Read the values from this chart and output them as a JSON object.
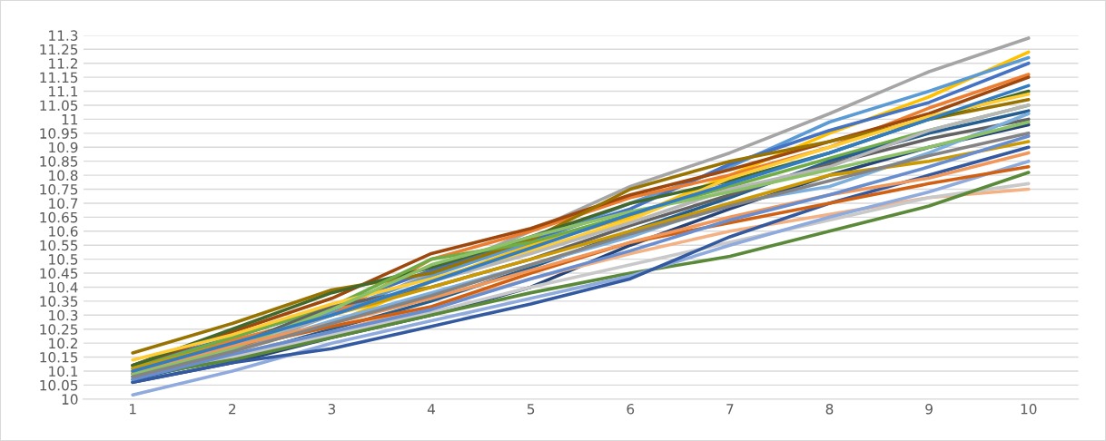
{
  "chart_data": {
    "type": "line",
    "categories": [
      "1",
      "2",
      "3",
      "4",
      "5",
      "6",
      "7",
      "8",
      "9",
      "10"
    ],
    "ylim": [
      10,
      11.3
    ],
    "yticks": [
      10,
      10.05,
      10.1,
      10.15,
      10.2,
      10.25,
      10.3,
      10.35,
      10.4,
      10.45,
      10.5,
      10.55,
      10.6,
      10.65,
      10.7,
      10.75,
      10.8,
      10.85,
      10.9,
      10.95,
      11,
      11.05,
      11.1,
      11.15,
      11.2,
      11.25,
      11.3
    ],
    "grid": "y",
    "marker": "none",
    "line_style": "solid",
    "series": [
      {
        "color": "#a5a5a5",
        "values": [
          10.08,
          10.17,
          10.3,
          10.45,
          10.6,
          10.76,
          10.88,
          11.02,
          11.17,
          11.29
        ]
      },
      {
        "color": "#ffc000",
        "values": [
          10.1,
          10.17,
          10.27,
          10.42,
          10.55,
          10.65,
          10.8,
          10.95,
          11.08,
          11.24
        ]
      },
      {
        "color": "#5b9bd5",
        "values": [
          10.09,
          10.2,
          10.31,
          10.44,
          10.56,
          10.7,
          10.83,
          10.99,
          11.1,
          11.22
        ]
      },
      {
        "color": "#4472c4",
        "values": [
          10.12,
          10.22,
          10.33,
          10.46,
          10.57,
          10.68,
          10.84,
          10.96,
          11.06,
          11.2
        ]
      },
      {
        "color": "#ed7d31",
        "values": [
          10.1,
          10.21,
          10.3,
          10.5,
          10.6,
          10.72,
          10.8,
          10.9,
          11.04,
          11.16
        ]
      },
      {
        "color": "#9e480e",
        "values": [
          10.12,
          10.24,
          10.36,
          10.52,
          10.61,
          10.73,
          10.82,
          10.92,
          11.02,
          11.15
        ]
      },
      {
        "color": "#997300",
        "values": [
          10.165,
          10.27,
          10.39,
          10.45,
          10.57,
          10.75,
          10.85,
          10.92,
          11.0,
          11.07
        ]
      },
      {
        "color": "#43682b",
        "values": [
          10.12,
          10.25,
          10.38,
          10.47,
          10.58,
          10.7,
          10.78,
          10.88,
          11.0,
          11.1
        ]
      },
      {
        "color": "#70ad47",
        "values": [
          10.11,
          10.22,
          10.33,
          10.5,
          10.56,
          10.66,
          10.76,
          10.86,
          10.96,
          11.05
        ]
      },
      {
        "color": "#264478",
        "values": [
          10.06,
          10.13,
          10.22,
          10.3,
          10.4,
          10.55,
          10.68,
          10.8,
          10.9,
          10.98
        ]
      },
      {
        "color": "#255e91",
        "values": [
          10.07,
          10.15,
          10.25,
          10.35,
          10.47,
          10.6,
          10.72,
          10.85,
          10.95,
          11.03
        ]
      },
      {
        "color": "#636363",
        "values": [
          10.09,
          10.19,
          10.33,
          10.4,
          10.5,
          10.62,
          10.73,
          10.84,
          10.93,
          11.0
        ]
      },
      {
        "color": "#ffcd33",
        "values": [
          10.14,
          10.23,
          10.34,
          10.43,
          10.53,
          10.64,
          10.79,
          10.9,
          11.01,
          11.09
        ]
      },
      {
        "color": "#f4b183",
        "values": [
          10.08,
          10.16,
          10.24,
          10.33,
          10.43,
          10.52,
          10.6,
          10.66,
          10.72,
          10.75
        ]
      },
      {
        "color": "#c9c9c9",
        "values": [
          10.09,
          10.15,
          10.23,
          10.31,
          10.4,
          10.48,
          10.56,
          10.64,
          10.72,
          10.77
        ]
      },
      {
        "color": "#5a8a39",
        "values": [
          10.08,
          10.14,
          10.22,
          10.3,
          10.38,
          10.45,
          10.51,
          10.6,
          10.69,
          10.81
        ]
      },
      {
        "color": "#8faadc",
        "values": [
          10.015,
          10.1,
          10.2,
          10.28,
          10.36,
          10.44,
          10.55,
          10.65,
          10.74,
          10.85
        ]
      },
      {
        "color": "#335aa1",
        "values": [
          10.06,
          10.13,
          10.18,
          10.26,
          10.34,
          10.43,
          10.58,
          10.7,
          10.8,
          10.9
        ]
      },
      {
        "color": "#d26012",
        "values": [
          10.09,
          10.18,
          10.26,
          10.33,
          10.45,
          10.56,
          10.63,
          10.7,
          10.77,
          10.83
        ]
      },
      {
        "color": "#7cafdd",
        "values": [
          10.08,
          10.17,
          10.28,
          10.38,
          10.48,
          10.58,
          10.7,
          10.76,
          10.88,
          11.02
        ]
      },
      {
        "color": "#cc9a00",
        "values": [
          10.11,
          10.2,
          10.3,
          10.4,
          10.5,
          10.6,
          10.7,
          10.8,
          10.85,
          10.92
        ]
      },
      {
        "color": "#b7b7b7",
        "values": [
          10.1,
          10.19,
          10.3,
          10.42,
          10.52,
          10.63,
          10.75,
          10.83,
          10.96,
          11.05
        ]
      },
      {
        "color": "#8cc168",
        "values": [
          10.09,
          10.18,
          10.32,
          10.48,
          10.58,
          10.67,
          10.74,
          10.82,
          10.9,
          10.99
        ]
      },
      {
        "color": "#f1975a",
        "values": [
          10.1,
          10.19,
          10.27,
          10.36,
          10.46,
          10.56,
          10.65,
          10.73,
          10.79,
          10.88
        ]
      },
      {
        "color": "#698ed0",
        "values": [
          10.07,
          10.16,
          10.24,
          10.32,
          10.43,
          10.53,
          10.64,
          10.73,
          10.83,
          10.94
        ]
      },
      {
        "color": "#327dc2",
        "values": [
          10.1,
          10.2,
          10.3,
          10.42,
          10.54,
          10.66,
          10.77,
          10.88,
          11.0,
          11.12
        ]
      },
      {
        "color": "#848484",
        "values": [
          10.08,
          10.17,
          10.27,
          10.37,
          10.48,
          10.59,
          10.69,
          10.78,
          10.87,
          10.95
        ]
      }
    ]
  }
}
